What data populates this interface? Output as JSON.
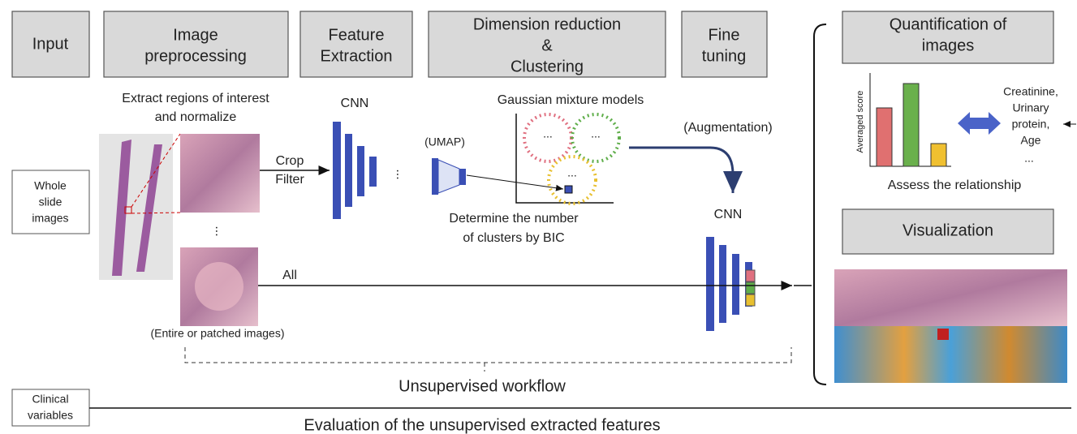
{
  "header_boxes": [
    {
      "lines": [
        "Input"
      ]
    },
    {
      "lines": [
        "Image",
        "preprocessing"
      ]
    },
    {
      "lines": [
        "Feature",
        "Extraction"
      ]
    },
    {
      "lines": [
        "Dimension reduction",
        "&",
        "Clustering"
      ]
    },
    {
      "lines": [
        "Fine",
        "tuning"
      ]
    },
    {
      "lines": [
        "Quantification of",
        "images"
      ]
    },
    {
      "lines": [
        "Visualization"
      ]
    }
  ],
  "side_boxes": {
    "whole_slide": [
      "Whole",
      "slide",
      "images"
    ],
    "clinical": [
      "Clinical",
      "variables"
    ]
  },
  "labels": {
    "extract": [
      "Extract regions of interest",
      "and normalize"
    ],
    "cnn_1": "CNN",
    "gmm": "Gaussian mixture models",
    "augmentation": "(Augmentation)",
    "crop_filter": [
      "Crop",
      "Filter"
    ],
    "umap": "(UMAP)",
    "bic": [
      "Determine the number",
      "of clusters by BIC"
    ],
    "cnn_2": "CNN",
    "all": "All",
    "entire": "(Entire or patched images)",
    "workflow": "Unsupervised workflow",
    "evaluation": "Evaluation of the unsupervised extracted features",
    "averaged_score": "Averaged score",
    "clinical_list": [
      "Creatinine,",
      "Urinary",
      "protein,",
      "Age",
      "..."
    ],
    "assess": "Assess the relationship",
    "ellipsis": "..."
  }
}
